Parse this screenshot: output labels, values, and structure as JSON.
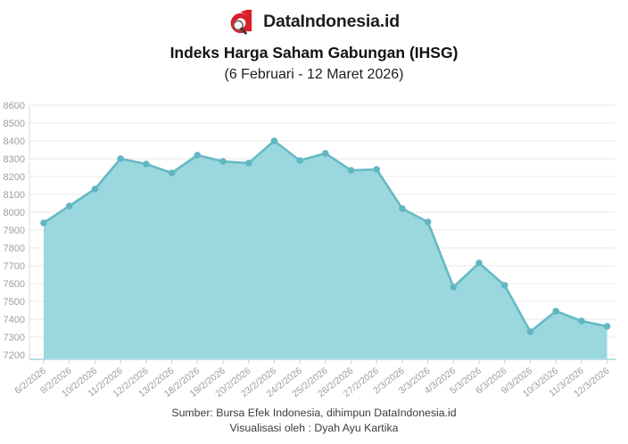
{
  "header": {
    "brand": "DataIndonesia.id"
  },
  "chart_data": {
    "type": "area",
    "title": "Indeks Harga Saham Gabungan (IHSG)",
    "subtitle": "(6 Februari - 12 Maret 2026)",
    "x": [
      "6/2/2026",
      "9/2/2026",
      "10/2/2026",
      "11/2/2026",
      "12/2/2026",
      "13/2/2026",
      "18/2/2026",
      "19/2/2026",
      "20/2/2026",
      "23/2/2026",
      "24/2/2026",
      "25/2/2026",
      "26/2/2026",
      "27/2/2026",
      "2/3/2026",
      "3/3/2026",
      "4/3/2026",
      "5/3/2026",
      "6/3/2026",
      "9/3/2026",
      "10/3/2026",
      "11/3/2026",
      "12/3/2026"
    ],
    "values": [
      7940,
      8035,
      8130,
      8300,
      8270,
      8220,
      8320,
      8285,
      8275,
      8400,
      8290,
      8330,
      8235,
      8240,
      8020,
      7945,
      7580,
      7715,
      7590,
      7330,
      7445,
      7390,
      7360
    ],
    "xlabel": "",
    "ylabel": "",
    "ylim": [
      7200,
      8600
    ],
    "ytick_step": 100,
    "grid": true,
    "legend": false,
    "colors": {
      "area_fill": "#9ad7de",
      "line": "#65bac4",
      "marker": "#60b7c2",
      "axis_label": "#9e9e9e",
      "gridline": "#e9e9e9",
      "axis_line": "#dcdcdc",
      "baseline": "#b8e0e4",
      "brand_red": "#d6212a"
    }
  },
  "footer": {
    "source": "Sumber: Bursa Efek Indonesia, dihimpun DataIndonesia.id",
    "credit": "Visualisasi oleh : Dyah Ayu Kartika"
  }
}
